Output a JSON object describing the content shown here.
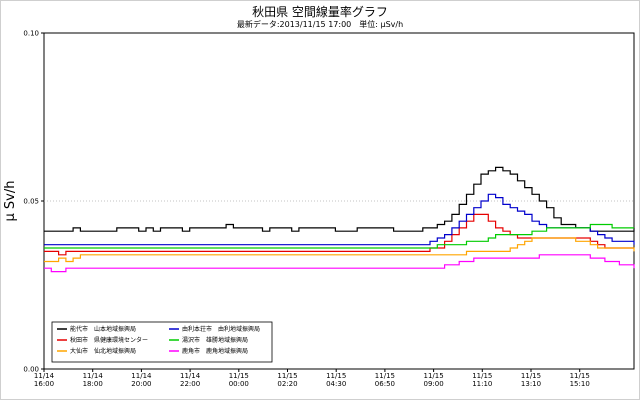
{
  "chart_data": {
    "type": "line",
    "title": "秋田県 空間線量率グラフ",
    "subtitle": "最新データ:2013/11/15 17:00　単位: μSv/h",
    "ylabel": "μ Sv/h",
    "xlabel": "",
    "ylim": [
      0,
      0.1
    ],
    "y_ticks": [
      "0.00",
      "0.05",
      "0.10"
    ],
    "y_gridlines": [
      0.05
    ],
    "grid": false,
    "legend_position": "bottom-left",
    "x_ticks": [
      {
        "date": "11/14",
        "time": "16:00"
      },
      {
        "date": "11/14",
        "time": "18:00"
      },
      {
        "date": "11/14",
        "time": "20:00"
      },
      {
        "date": "11/14",
        "time": "22:00"
      },
      {
        "date": "11/15",
        "time": "00:00"
      },
      {
        "date": "11/15",
        "time": "02:20"
      },
      {
        "date": "11/15",
        "time": "04:30"
      },
      {
        "date": "11/15",
        "time": "06:50"
      },
      {
        "date": "11/15",
        "time": "09:00"
      },
      {
        "date": "11/15",
        "time": "11:10"
      },
      {
        "date": "11/15",
        "time": "13:10"
      },
      {
        "date": "11/15",
        "time": "15:10"
      }
    ],
    "series": [
      {
        "name": "能代市　山本地域振興局",
        "color": "#000000",
        "values": [
          0.041,
          0.041,
          0.041,
          0.041,
          0.042,
          0.041,
          0.041,
          0.041,
          0.041,
          0.041,
          0.042,
          0.042,
          0.042,
          0.041,
          0.042,
          0.041,
          0.042,
          0.042,
          0.042,
          0.041,
          0.042,
          0.042,
          0.042,
          0.042,
          0.042,
          0.043,
          0.042,
          0.042,
          0.042,
          0.042,
          0.041,
          0.042,
          0.042,
          0.042,
          0.041,
          0.042,
          0.042,
          0.042,
          0.042,
          0.042,
          0.041,
          0.041,
          0.041,
          0.042,
          0.042,
          0.042,
          0.042,
          0.042,
          0.041,
          0.041,
          0.041,
          0.041,
          0.042,
          0.042,
          0.043,
          0.044,
          0.046,
          0.049,
          0.052,
          0.055,
          0.058,
          0.059,
          0.06,
          0.059,
          0.058,
          0.056,
          0.054,
          0.052,
          0.05,
          0.048,
          0.045,
          0.043,
          0.043,
          0.042,
          0.042,
          0.041,
          0.041,
          0.041,
          0.041,
          0.041,
          0.041,
          0.042
        ]
      },
      {
        "name": "秋田市　県健康環境センター",
        "color": "#e60000",
        "values": [
          0.035,
          0.035,
          0.034,
          0.035,
          0.035,
          0.035,
          0.035,
          0.035,
          0.035,
          0.035,
          0.035,
          0.035,
          0.035,
          0.035,
          0.035,
          0.035,
          0.035,
          0.035,
          0.035,
          0.035,
          0.035,
          0.035,
          0.035,
          0.035,
          0.035,
          0.035,
          0.035,
          0.035,
          0.035,
          0.035,
          0.035,
          0.035,
          0.035,
          0.035,
          0.035,
          0.035,
          0.035,
          0.035,
          0.035,
          0.035,
          0.035,
          0.035,
          0.035,
          0.035,
          0.035,
          0.035,
          0.035,
          0.035,
          0.035,
          0.035,
          0.035,
          0.035,
          0.035,
          0.036,
          0.036,
          0.038,
          0.04,
          0.042,
          0.044,
          0.046,
          0.046,
          0.044,
          0.042,
          0.041,
          0.04,
          0.039,
          0.039,
          0.039,
          0.039,
          0.039,
          0.039,
          0.039,
          0.039,
          0.039,
          0.039,
          0.038,
          0.037,
          0.036,
          0.036,
          0.036,
          0.036,
          0.036
        ]
      },
      {
        "name": "大仙市　仙北地域振興局",
        "color": "#ffa500",
        "values": [
          0.032,
          0.032,
          0.033,
          0.032,
          0.033,
          0.034,
          0.034,
          0.034,
          0.034,
          0.034,
          0.034,
          0.034,
          0.034,
          0.034,
          0.034,
          0.034,
          0.034,
          0.034,
          0.034,
          0.034,
          0.034,
          0.034,
          0.034,
          0.034,
          0.034,
          0.034,
          0.034,
          0.034,
          0.034,
          0.034,
          0.034,
          0.034,
          0.034,
          0.034,
          0.034,
          0.034,
          0.034,
          0.034,
          0.034,
          0.034,
          0.034,
          0.034,
          0.034,
          0.034,
          0.034,
          0.034,
          0.034,
          0.034,
          0.034,
          0.034,
          0.034,
          0.034,
          0.034,
          0.034,
          0.034,
          0.034,
          0.034,
          0.034,
          0.035,
          0.035,
          0.035,
          0.035,
          0.035,
          0.035,
          0.036,
          0.037,
          0.038,
          0.039,
          0.039,
          0.039,
          0.039,
          0.039,
          0.039,
          0.038,
          0.038,
          0.037,
          0.036,
          0.036,
          0.036,
          0.036,
          0.036,
          0.035
        ]
      },
      {
        "name": "由利本荘市　由利地域振興局",
        "color": "#0000cc",
        "values": [
          0.037,
          0.037,
          0.037,
          0.037,
          0.037,
          0.037,
          0.037,
          0.037,
          0.037,
          0.037,
          0.037,
          0.037,
          0.037,
          0.037,
          0.037,
          0.037,
          0.037,
          0.037,
          0.037,
          0.037,
          0.037,
          0.037,
          0.037,
          0.037,
          0.037,
          0.037,
          0.037,
          0.037,
          0.037,
          0.037,
          0.037,
          0.037,
          0.037,
          0.037,
          0.037,
          0.037,
          0.037,
          0.037,
          0.037,
          0.037,
          0.037,
          0.037,
          0.037,
          0.037,
          0.037,
          0.037,
          0.037,
          0.037,
          0.037,
          0.037,
          0.037,
          0.037,
          0.037,
          0.038,
          0.039,
          0.04,
          0.042,
          0.044,
          0.046,
          0.048,
          0.05,
          0.052,
          0.051,
          0.049,
          0.048,
          0.047,
          0.046,
          0.044,
          0.043,
          0.042,
          0.042,
          0.042,
          0.042,
          0.042,
          0.042,
          0.041,
          0.04,
          0.039,
          0.038,
          0.038,
          0.038,
          0.037
        ]
      },
      {
        "name": "湯沢市　雄勝地域振興局",
        "color": "#00cc00",
        "values": [
          0.036,
          0.036,
          0.036,
          0.036,
          0.036,
          0.036,
          0.036,
          0.036,
          0.036,
          0.036,
          0.036,
          0.036,
          0.036,
          0.036,
          0.036,
          0.036,
          0.036,
          0.036,
          0.036,
          0.036,
          0.036,
          0.036,
          0.036,
          0.036,
          0.036,
          0.036,
          0.036,
          0.036,
          0.036,
          0.036,
          0.036,
          0.036,
          0.036,
          0.036,
          0.036,
          0.036,
          0.036,
          0.036,
          0.036,
          0.036,
          0.036,
          0.036,
          0.036,
          0.036,
          0.036,
          0.036,
          0.036,
          0.036,
          0.036,
          0.036,
          0.036,
          0.036,
          0.036,
          0.036,
          0.037,
          0.037,
          0.037,
          0.037,
          0.038,
          0.038,
          0.038,
          0.039,
          0.04,
          0.04,
          0.04,
          0.04,
          0.04,
          0.041,
          0.041,
          0.042,
          0.042,
          0.042,
          0.042,
          0.042,
          0.042,
          0.043,
          0.043,
          0.043,
          0.042,
          0.042,
          0.042,
          0.042
        ]
      },
      {
        "name": "鹿角市　鹿角地域振興局",
        "color": "#ff00ff",
        "values": [
          0.03,
          0.029,
          0.029,
          0.03,
          0.03,
          0.03,
          0.03,
          0.03,
          0.03,
          0.03,
          0.03,
          0.03,
          0.03,
          0.03,
          0.03,
          0.03,
          0.03,
          0.03,
          0.03,
          0.03,
          0.03,
          0.03,
          0.03,
          0.03,
          0.03,
          0.03,
          0.03,
          0.03,
          0.03,
          0.03,
          0.03,
          0.03,
          0.03,
          0.03,
          0.03,
          0.03,
          0.03,
          0.03,
          0.03,
          0.03,
          0.03,
          0.03,
          0.03,
          0.03,
          0.03,
          0.03,
          0.03,
          0.03,
          0.03,
          0.03,
          0.03,
          0.03,
          0.03,
          0.03,
          0.03,
          0.031,
          0.031,
          0.032,
          0.032,
          0.033,
          0.033,
          0.033,
          0.033,
          0.033,
          0.033,
          0.033,
          0.033,
          0.033,
          0.034,
          0.034,
          0.034,
          0.034,
          0.034,
          0.034,
          0.034,
          0.033,
          0.033,
          0.032,
          0.032,
          0.031,
          0.031,
          0.03
        ]
      }
    ]
  }
}
